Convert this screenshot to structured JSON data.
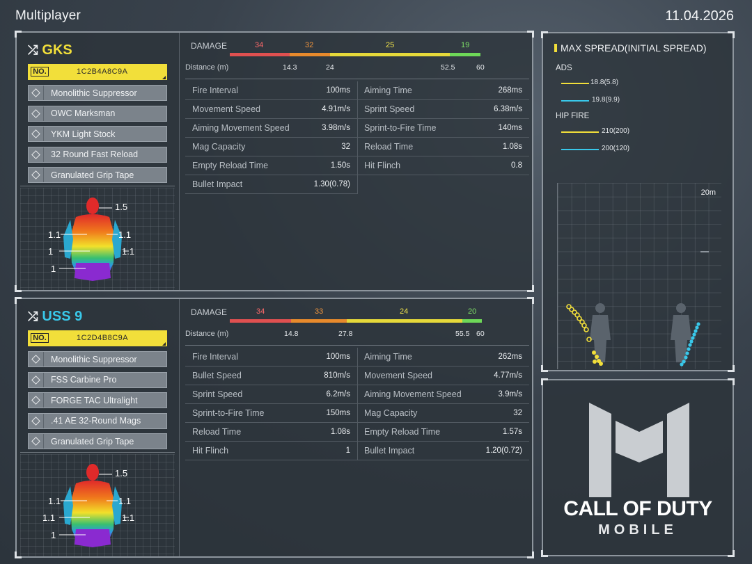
{
  "header": {
    "title": "Multiplayer",
    "date": "11.04.2026"
  },
  "weapons": [
    {
      "name": "GKS",
      "name_color": "#f2df3a",
      "code_label": "NO.",
      "code": "1C2B4A8C9A",
      "attachments": [
        "Monolithic Suppressor",
        "OWC Marksman",
        "YKM Light Stock",
        "32 Round Fast Reload",
        "Granulated Grip Tape"
      ],
      "damage_label": "DAMAGE",
      "distance_label": "Distance (m)",
      "damage_values": [
        "34",
        "32",
        "25",
        "19"
      ],
      "distances": [
        "14.3",
        "24",
        "52.5",
        "60"
      ],
      "multipliers": {
        "head": "1.5",
        "upper_left": "1.1",
        "upper_right": "1.1",
        "arm": "1.1",
        "lower": "1",
        "legs": "1"
      },
      "stats_left": [
        {
          "label": "Fire Interval",
          "value": "100ms"
        },
        {
          "label": "Movement Speed",
          "value": "4.91m/s"
        },
        {
          "label": "Aiming Movement Speed",
          "value": "3.98m/s"
        },
        {
          "label": "Mag Capacity",
          "value": "32"
        },
        {
          "label": "Empty Reload Time",
          "value": "1.50s"
        },
        {
          "label": "Bullet Impact",
          "value": "1.30(0.78)"
        }
      ],
      "stats_right": [
        {
          "label": "Aiming Time",
          "value": "268ms"
        },
        {
          "label": "Sprint Speed",
          "value": "6.38m/s"
        },
        {
          "label": "Sprint-to-Fire Time",
          "value": "140ms"
        },
        {
          "label": "Reload Time",
          "value": "1.08s"
        },
        {
          "label": "Hit Flinch",
          "value": "0.8"
        }
      ]
    },
    {
      "name": "USS 9",
      "name_color": "#39c8ea",
      "code_label": "NO.",
      "code": "1C2D4B8C9A",
      "attachments": [
        "Monolithic Suppressor",
        "FSS Carbine Pro",
        "FORGE TAC Ultralight",
        ".41 AE 32-Round Mags",
        "Granulated Grip Tape"
      ],
      "damage_label": "DAMAGE",
      "distance_label": "Distance (m)",
      "damage_values": [
        "34",
        "33",
        "24",
        "20"
      ],
      "distances": [
        "14.8",
        "27.8",
        "55.5",
        "60"
      ],
      "multipliers": {
        "head": "1.5",
        "upper_left": "1.1",
        "upper_right": "1.1",
        "arm": "1.1",
        "lower": "1.1",
        "legs": "1"
      },
      "stats_left": [
        {
          "label": "Fire Interval",
          "value": "100ms"
        },
        {
          "label": "Bullet Speed",
          "value": "810m/s"
        },
        {
          "label": "Sprint Speed",
          "value": "6.2m/s"
        },
        {
          "label": "Sprint-to-Fire Time",
          "value": "150ms"
        },
        {
          "label": "Reload Time",
          "value": "1.08s"
        },
        {
          "label": "Hit Flinch",
          "value": "1"
        }
      ],
      "stats_right": [
        {
          "label": "Aiming Time",
          "value": "262ms"
        },
        {
          "label": "Movement Speed",
          "value": "4.77m/s"
        },
        {
          "label": "Aiming Movement Speed",
          "value": "3.9m/s"
        },
        {
          "label": "Mag Capacity",
          "value": "32"
        },
        {
          "label": "Empty Reload Time",
          "value": "1.57s"
        },
        {
          "label": "Bullet Impact",
          "value": "1.20(0.72)"
        }
      ]
    }
  ],
  "spread": {
    "title": "MAX SPREAD(INITIAL SPREAD)",
    "ads_label": "ADS",
    "hip_label": "HIP FIRE",
    "ads_values": [
      "18.8(5.8)",
      "19.8(9.9)"
    ],
    "hip_values": [
      "210(200)",
      "200(120)"
    ],
    "range": "20m",
    "colors": {
      "gks": "#f2df3a",
      "uss9": "#39c8ea"
    }
  },
  "logo": {
    "line1": "CALL OF DUTY",
    "line2": "MOBILE"
  }
}
